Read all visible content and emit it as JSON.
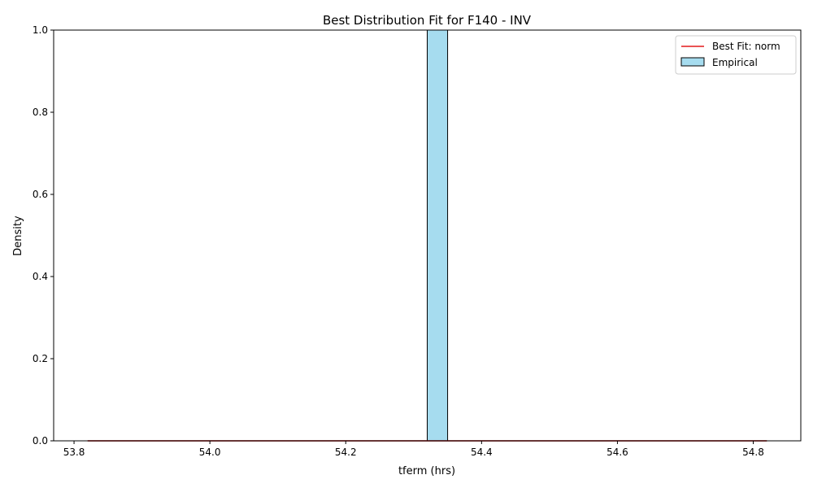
{
  "chart_data": {
    "type": "bar",
    "title": "Best Distribution Fit for F140 - INV",
    "xlabel": "tferm (hrs)",
    "ylabel": "Density",
    "xlim": [
      53.77,
      54.87
    ],
    "ylim": [
      0,
      1.0
    ],
    "xticks": [
      "53.8",
      "54.0",
      "54.2",
      "54.4",
      "54.6",
      "54.8"
    ],
    "yticks": [
      "0.0",
      "0.2",
      "0.4",
      "0.6",
      "0.8",
      "1.0"
    ],
    "grid": false,
    "legend_position": "top-right",
    "series": [
      {
        "name": "Best Fit: norm",
        "kind": "line",
        "color": "#e41a1c",
        "x": [
          53.82,
          54.82
        ],
        "y": [
          0,
          0
        ]
      },
      {
        "name": "Empirical",
        "kind": "histogram",
        "color": "#a6dcef",
        "bins": [
          {
            "x0": 54.32,
            "x1": 54.35,
            "density": 1.0
          }
        ]
      }
    ],
    "baseline": {
      "color": "#000000",
      "x": [
        53.82,
        54.82
      ],
      "y": [
        0,
        0
      ]
    }
  }
}
